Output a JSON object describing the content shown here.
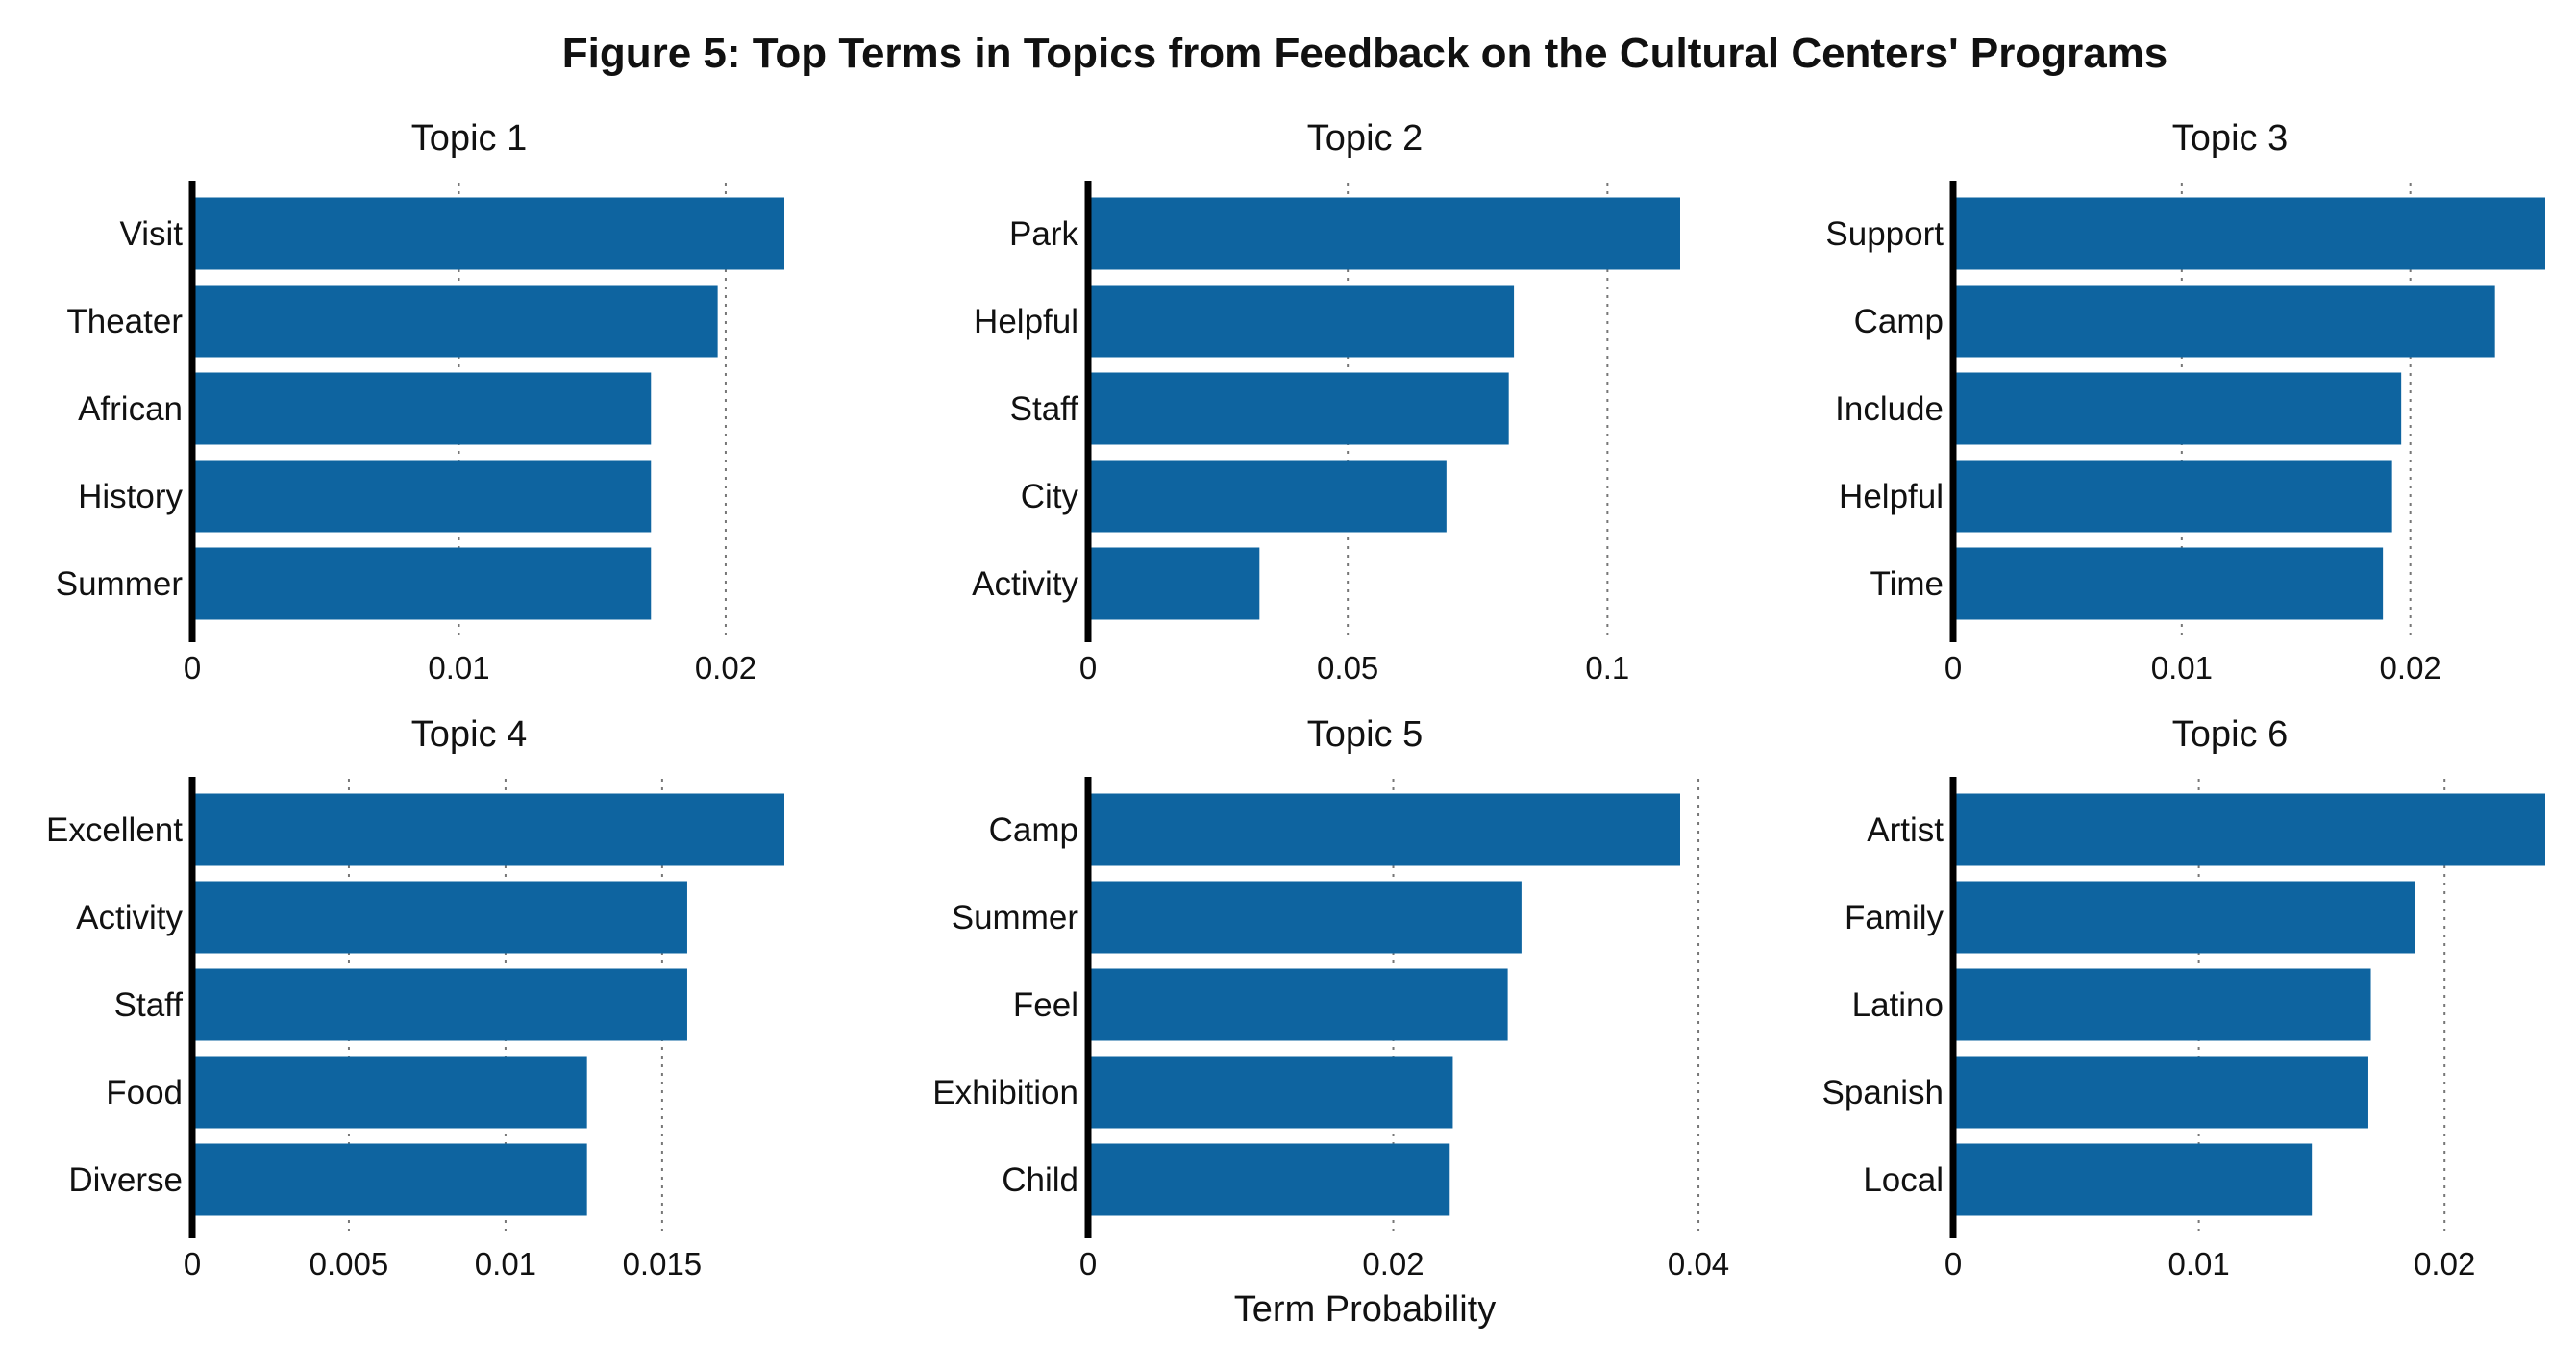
{
  "title": "Figure 5: Top Terms in Topics from Feedback on the Cultural Centers' Programs",
  "xlabel": "Term Probability",
  "bar_color": "#0e64a0",
  "chart_data": [
    {
      "type": "bar",
      "orientation": "horizontal",
      "title": "Topic 1",
      "categories": [
        "Visit",
        "Theater",
        "African",
        "History",
        "Summer"
      ],
      "values": [
        0.0222,
        0.0197,
        0.0172,
        0.0172,
        0.0172
      ],
      "xlim": [
        0,
        0.0222
      ],
      "ticks": [
        0,
        0.01,
        0.02
      ],
      "tick_labels": [
        "0",
        "0.01",
        "0.02"
      ]
    },
    {
      "type": "bar",
      "orientation": "horizontal",
      "title": "Topic 2",
      "categories": [
        "Park",
        "Helpful",
        "Staff",
        "City",
        "Activity"
      ],
      "values": [
        0.114,
        0.082,
        0.081,
        0.069,
        0.033
      ],
      "xlim": [
        0,
        0.114
      ],
      "ticks": [
        0,
        0.05,
        0.1
      ],
      "tick_labels": [
        "0",
        "0.05",
        "0.1"
      ]
    },
    {
      "type": "bar",
      "orientation": "horizontal",
      "title": "Topic 3",
      "categories": [
        "Support",
        "Camp",
        "Include",
        "Helpful",
        "Time"
      ],
      "values": [
        0.0259,
        0.0237,
        0.0196,
        0.0192,
        0.0188
      ],
      "xlim": [
        0,
        0.0259
      ],
      "ticks": [
        0,
        0.01,
        0.02
      ],
      "tick_labels": [
        "0",
        "0.01",
        "0.02"
      ]
    },
    {
      "type": "bar",
      "orientation": "horizontal",
      "title": "Topic 4",
      "categories": [
        "Excellent",
        "Activity",
        "Staff",
        "Food",
        "Diverse"
      ],
      "values": [
        0.0189,
        0.0158,
        0.0158,
        0.0126,
        0.0126
      ],
      "xlim": [
        0,
        0.0189
      ],
      "ticks": [
        0,
        0.005,
        0.01,
        0.015
      ],
      "tick_labels": [
        "0",
        "0.005",
        "0.01",
        "0.015"
      ]
    },
    {
      "type": "bar",
      "orientation": "horizontal",
      "title": "Topic 5",
      "categories": [
        "Camp",
        "Summer",
        "Feel",
        "Exhibition",
        "Child"
      ],
      "values": [
        0.0388,
        0.0284,
        0.0275,
        0.0239,
        0.0237
      ],
      "xlim": [
        0,
        0.0388
      ],
      "ticks": [
        0,
        0.02,
        0.04
      ],
      "tick_labels": [
        "0",
        "0.02",
        "0.04"
      ]
    },
    {
      "type": "bar",
      "orientation": "horizontal",
      "title": "Topic 6",
      "categories": [
        "Artist",
        "Family",
        "Latino",
        "Spanish",
        "Local"
      ],
      "values": [
        0.0241,
        0.0188,
        0.017,
        0.0169,
        0.0146
      ],
      "xlim": [
        0,
        0.0241
      ],
      "ticks": [
        0,
        0.01,
        0.02
      ],
      "tick_labels": [
        "0",
        "0.01",
        "0.02"
      ]
    }
  ]
}
